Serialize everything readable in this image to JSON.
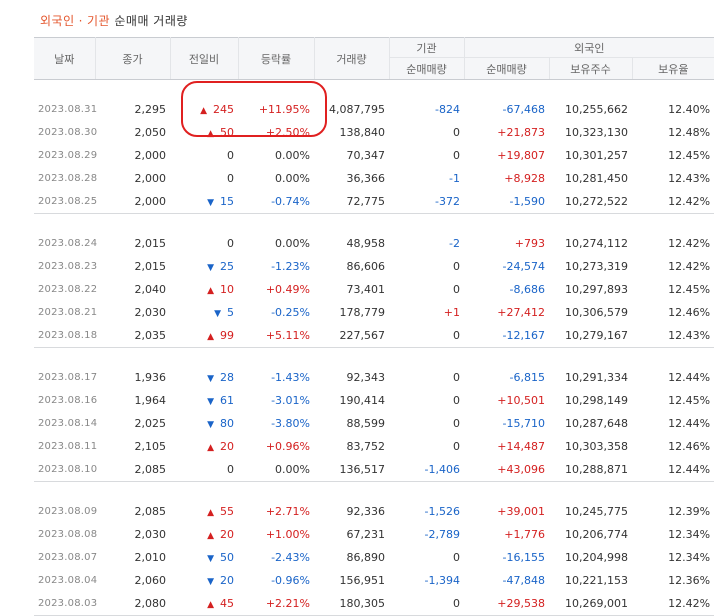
{
  "title": {
    "part1": "외국인",
    "sep": "·",
    "part2": "기관",
    "part3": "순매매 거래량"
  },
  "headers": {
    "date": "날짜",
    "close": "종가",
    "change": "전일비",
    "rate": "등락률",
    "volume": "거래량",
    "inst_group": "기관",
    "foreign_group": "외국인",
    "inst_net": "순매매량",
    "foreign_net": "순매매량",
    "foreign_hold": "보유주수",
    "foreign_ratio": "보유율"
  },
  "colors": {
    "up": "#d42020",
    "down": "#1a64c8",
    "highlight": "#e02020"
  },
  "groups": [
    {
      "rows": [
        {
          "date": "2023.08.31",
          "close": "2,295",
          "dir": "up",
          "change": "245",
          "rate": "+11.95%",
          "volume": "4,087,795",
          "inst": "-824",
          "foreign": "-67,468",
          "hold": "10,255,662",
          "ratio": "12.40%"
        },
        {
          "date": "2023.08.30",
          "close": "2,050",
          "dir": "up",
          "change": "50",
          "rate": "+2.50%",
          "volume": "138,840",
          "inst": "0",
          "foreign": "+21,873",
          "hold": "10,323,130",
          "ratio": "12.48%"
        },
        {
          "date": "2023.08.29",
          "close": "2,000",
          "dir": "none",
          "change": "0",
          "rate": "0.00%",
          "volume": "70,347",
          "inst": "0",
          "foreign": "+19,807",
          "hold": "10,301,257",
          "ratio": "12.45%"
        },
        {
          "date": "2023.08.28",
          "close": "2,000",
          "dir": "none",
          "change": "0",
          "rate": "0.00%",
          "volume": "36,366",
          "inst": "-1",
          "foreign": "+8,928",
          "hold": "10,281,450",
          "ratio": "12.43%"
        },
        {
          "date": "2023.08.25",
          "close": "2,000",
          "dir": "down",
          "change": "15",
          "rate": "-0.74%",
          "volume": "72,775",
          "inst": "-372",
          "foreign": "-1,590",
          "hold": "10,272,522",
          "ratio": "12.42%"
        }
      ]
    },
    {
      "rows": [
        {
          "date": "2023.08.24",
          "close": "2,015",
          "dir": "none",
          "change": "0",
          "rate": "0.00%",
          "volume": "48,958",
          "inst": "-2",
          "foreign": "+793",
          "hold": "10,274,112",
          "ratio": "12.42%"
        },
        {
          "date": "2023.08.23",
          "close": "2,015",
          "dir": "down",
          "change": "25",
          "rate": "-1.23%",
          "volume": "86,606",
          "inst": "0",
          "foreign": "-24,574",
          "hold": "10,273,319",
          "ratio": "12.42%"
        },
        {
          "date": "2023.08.22",
          "close": "2,040",
          "dir": "up",
          "change": "10",
          "rate": "+0.49%",
          "volume": "73,401",
          "inst": "0",
          "foreign": "-8,686",
          "hold": "10,297,893",
          "ratio": "12.45%"
        },
        {
          "date": "2023.08.21",
          "close": "2,030",
          "dir": "down",
          "change": "5",
          "rate": "-0.25%",
          "volume": "178,779",
          "inst": "+1",
          "foreign": "+27,412",
          "hold": "10,306,579",
          "ratio": "12.46%"
        },
        {
          "date": "2023.08.18",
          "close": "2,035",
          "dir": "up",
          "change": "99",
          "rate": "+5.11%",
          "volume": "227,567",
          "inst": "0",
          "foreign": "-12,167",
          "hold": "10,279,167",
          "ratio": "12.43%"
        }
      ]
    },
    {
      "rows": [
        {
          "date": "2023.08.17",
          "close": "1,936",
          "dir": "down",
          "change": "28",
          "rate": "-1.43%",
          "volume": "92,343",
          "inst": "0",
          "foreign": "-6,815",
          "hold": "10,291,334",
          "ratio": "12.44%"
        },
        {
          "date": "2023.08.16",
          "close": "1,964",
          "dir": "down",
          "change": "61",
          "rate": "-3.01%",
          "volume": "190,414",
          "inst": "0",
          "foreign": "+10,501",
          "hold": "10,298,149",
          "ratio": "12.45%"
        },
        {
          "date": "2023.08.14",
          "close": "2,025",
          "dir": "down",
          "change": "80",
          "rate": "-3.80%",
          "volume": "88,599",
          "inst": "0",
          "foreign": "-15,710",
          "hold": "10,287,648",
          "ratio": "12.44%"
        },
        {
          "date": "2023.08.11",
          "close": "2,105",
          "dir": "up",
          "change": "20",
          "rate": "+0.96%",
          "volume": "83,752",
          "inst": "0",
          "foreign": "+14,487",
          "hold": "10,303,358",
          "ratio": "12.46%"
        },
        {
          "date": "2023.08.10",
          "close": "2,085",
          "dir": "none",
          "change": "0",
          "rate": "0.00%",
          "volume": "136,517",
          "inst": "-1,406",
          "foreign": "+43,096",
          "hold": "10,288,871",
          "ratio": "12.44%"
        }
      ]
    },
    {
      "rows": [
        {
          "date": "2023.08.09",
          "close": "2,085",
          "dir": "up",
          "change": "55",
          "rate": "+2.71%",
          "volume": "92,336",
          "inst": "-1,526",
          "foreign": "+39,001",
          "hold": "10,245,775",
          "ratio": "12.39%"
        },
        {
          "date": "2023.08.08",
          "close": "2,030",
          "dir": "up",
          "change": "20",
          "rate": "+1.00%",
          "volume": "67,231",
          "inst": "-2,789",
          "foreign": "+1,776",
          "hold": "10,206,774",
          "ratio": "12.34%"
        },
        {
          "date": "2023.08.07",
          "close": "2,010",
          "dir": "down",
          "change": "50",
          "rate": "-2.43%",
          "volume": "86,890",
          "inst": "0",
          "foreign": "-16,155",
          "hold": "10,204,998",
          "ratio": "12.34%"
        },
        {
          "date": "2023.08.04",
          "close": "2,060",
          "dir": "down",
          "change": "20",
          "rate": "-0.96%",
          "volume": "156,951",
          "inst": "-1,394",
          "foreign": "-47,848",
          "hold": "10,221,153",
          "ratio": "12.36%"
        },
        {
          "date": "2023.08.03",
          "close": "2,080",
          "dir": "up",
          "change": "45",
          "rate": "+2.21%",
          "volume": "180,305",
          "inst": "0",
          "foreign": "+29,538",
          "hold": "10,269,001",
          "ratio": "12.42%"
        }
      ]
    }
  ]
}
